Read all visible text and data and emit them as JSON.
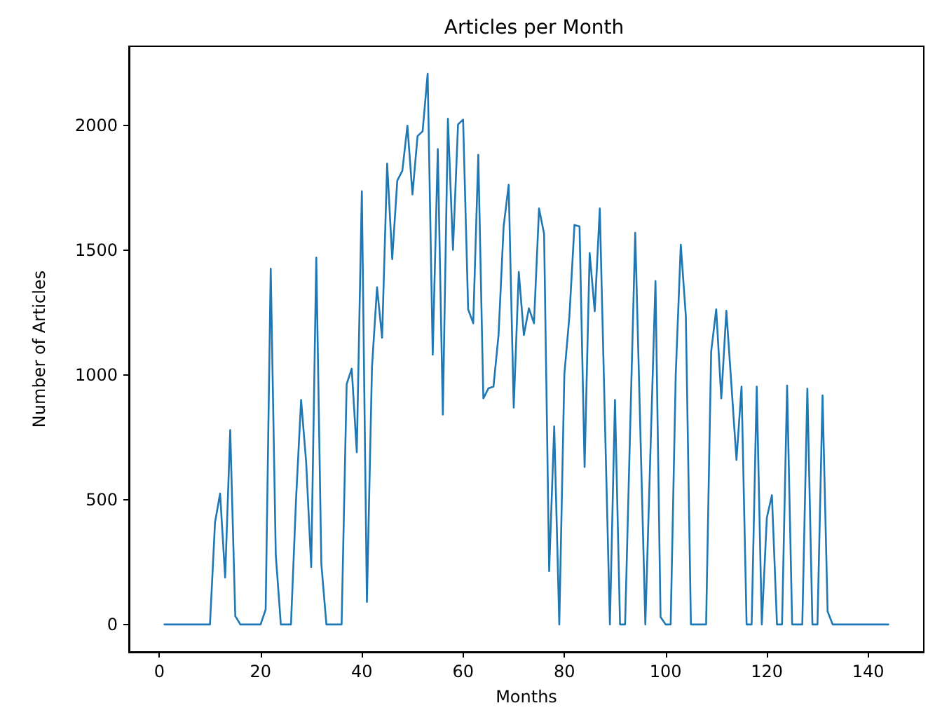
{
  "chart_data": {
    "type": "line",
    "title": "Articles per Month",
    "xlabel": "Months",
    "ylabel": "Number of Articles",
    "x": [
      1,
      2,
      3,
      4,
      5,
      6,
      7,
      8,
      9,
      10,
      11,
      12,
      13,
      14,
      15,
      16,
      17,
      18,
      19,
      20,
      21,
      22,
      23,
      24,
      25,
      26,
      27,
      28,
      29,
      30,
      31,
      32,
      33,
      34,
      35,
      36,
      37,
      38,
      39,
      40,
      41,
      42,
      43,
      44,
      45,
      46,
      47,
      48,
      49,
      50,
      51,
      52,
      53,
      54,
      55,
      56,
      57,
      58,
      59,
      60,
      61,
      62,
      63,
      64,
      65,
      66,
      67,
      68,
      69,
      70,
      71,
      72,
      73,
      74,
      75,
      76,
      77,
      78,
      79,
      80,
      81,
      82,
      83,
      84,
      85,
      86,
      87,
      88,
      89,
      90,
      91,
      92,
      93,
      94,
      95,
      96,
      97,
      98,
      99,
      100,
      101,
      102,
      103,
      104,
      105,
      106,
      107,
      108,
      109,
      110,
      111,
      112,
      113,
      114,
      115,
      116,
      117,
      118,
      119,
      120,
      121,
      122,
      123,
      124,
      125,
      126,
      127,
      128,
      129,
      130,
      131,
      132,
      133,
      134,
      135,
      136,
      137,
      138,
      139,
      140,
      141,
      142,
      143,
      144
    ],
    "series": [
      {
        "color": "#1f77b4",
        "values": [
          0,
          0,
          0,
          0,
          0,
          0,
          0,
          0,
          0,
          0,
          409,
          525,
          188,
          779,
          34,
          0,
          0,
          0,
          0,
          0,
          60,
          1426,
          278,
          0,
          0,
          0,
          500,
          900,
          650,
          230,
          1470,
          242,
          0,
          0,
          0,
          0,
          963,
          1025,
          690,
          1736,
          90,
          1030,
          1351,
          1149,
          1847,
          1464,
          1779,
          1818,
          1999,
          1723,
          1957,
          1976,
          2207,
          1081,
          1905,
          841,
          2027,
          1501,
          2004,
          2023,
          1263,
          1207,
          1882,
          906,
          946,
          953,
          1160,
          1593,
          1762,
          869,
          1413,
          1160,
          1267,
          1207,
          1667,
          1565,
          214,
          794,
          0,
          1002,
          1235,
          1601,
          1595,
          631,
          1488,
          1255,
          1667,
          830,
          0,
          900,
          0,
          0,
          785,
          1570,
          785,
          0,
          690,
          1376,
          30,
          0,
          0,
          1000,
          1522,
          1235,
          0,
          0,
          0,
          0,
          1094,
          1263,
          906,
          1257,
          960,
          659,
          953,
          0,
          0,
          953,
          0,
          428,
          518,
          0,
          0,
          957,
          0,
          0,
          0,
          945,
          0,
          0,
          918,
          52,
          0,
          0,
          0,
          0,
          0,
          0,
          0,
          0,
          0,
          0,
          0,
          0
        ]
      }
    ],
    "xlim": [
      -6,
      151
    ],
    "xticks": [
      0,
      20,
      40,
      60,
      80,
      100,
      120,
      140
    ],
    "ylim": [
      -110,
      2317
    ],
    "yticks": [
      0,
      500,
      1000,
      1500,
      2000
    ],
    "marker": "none",
    "line_style": "solid"
  }
}
